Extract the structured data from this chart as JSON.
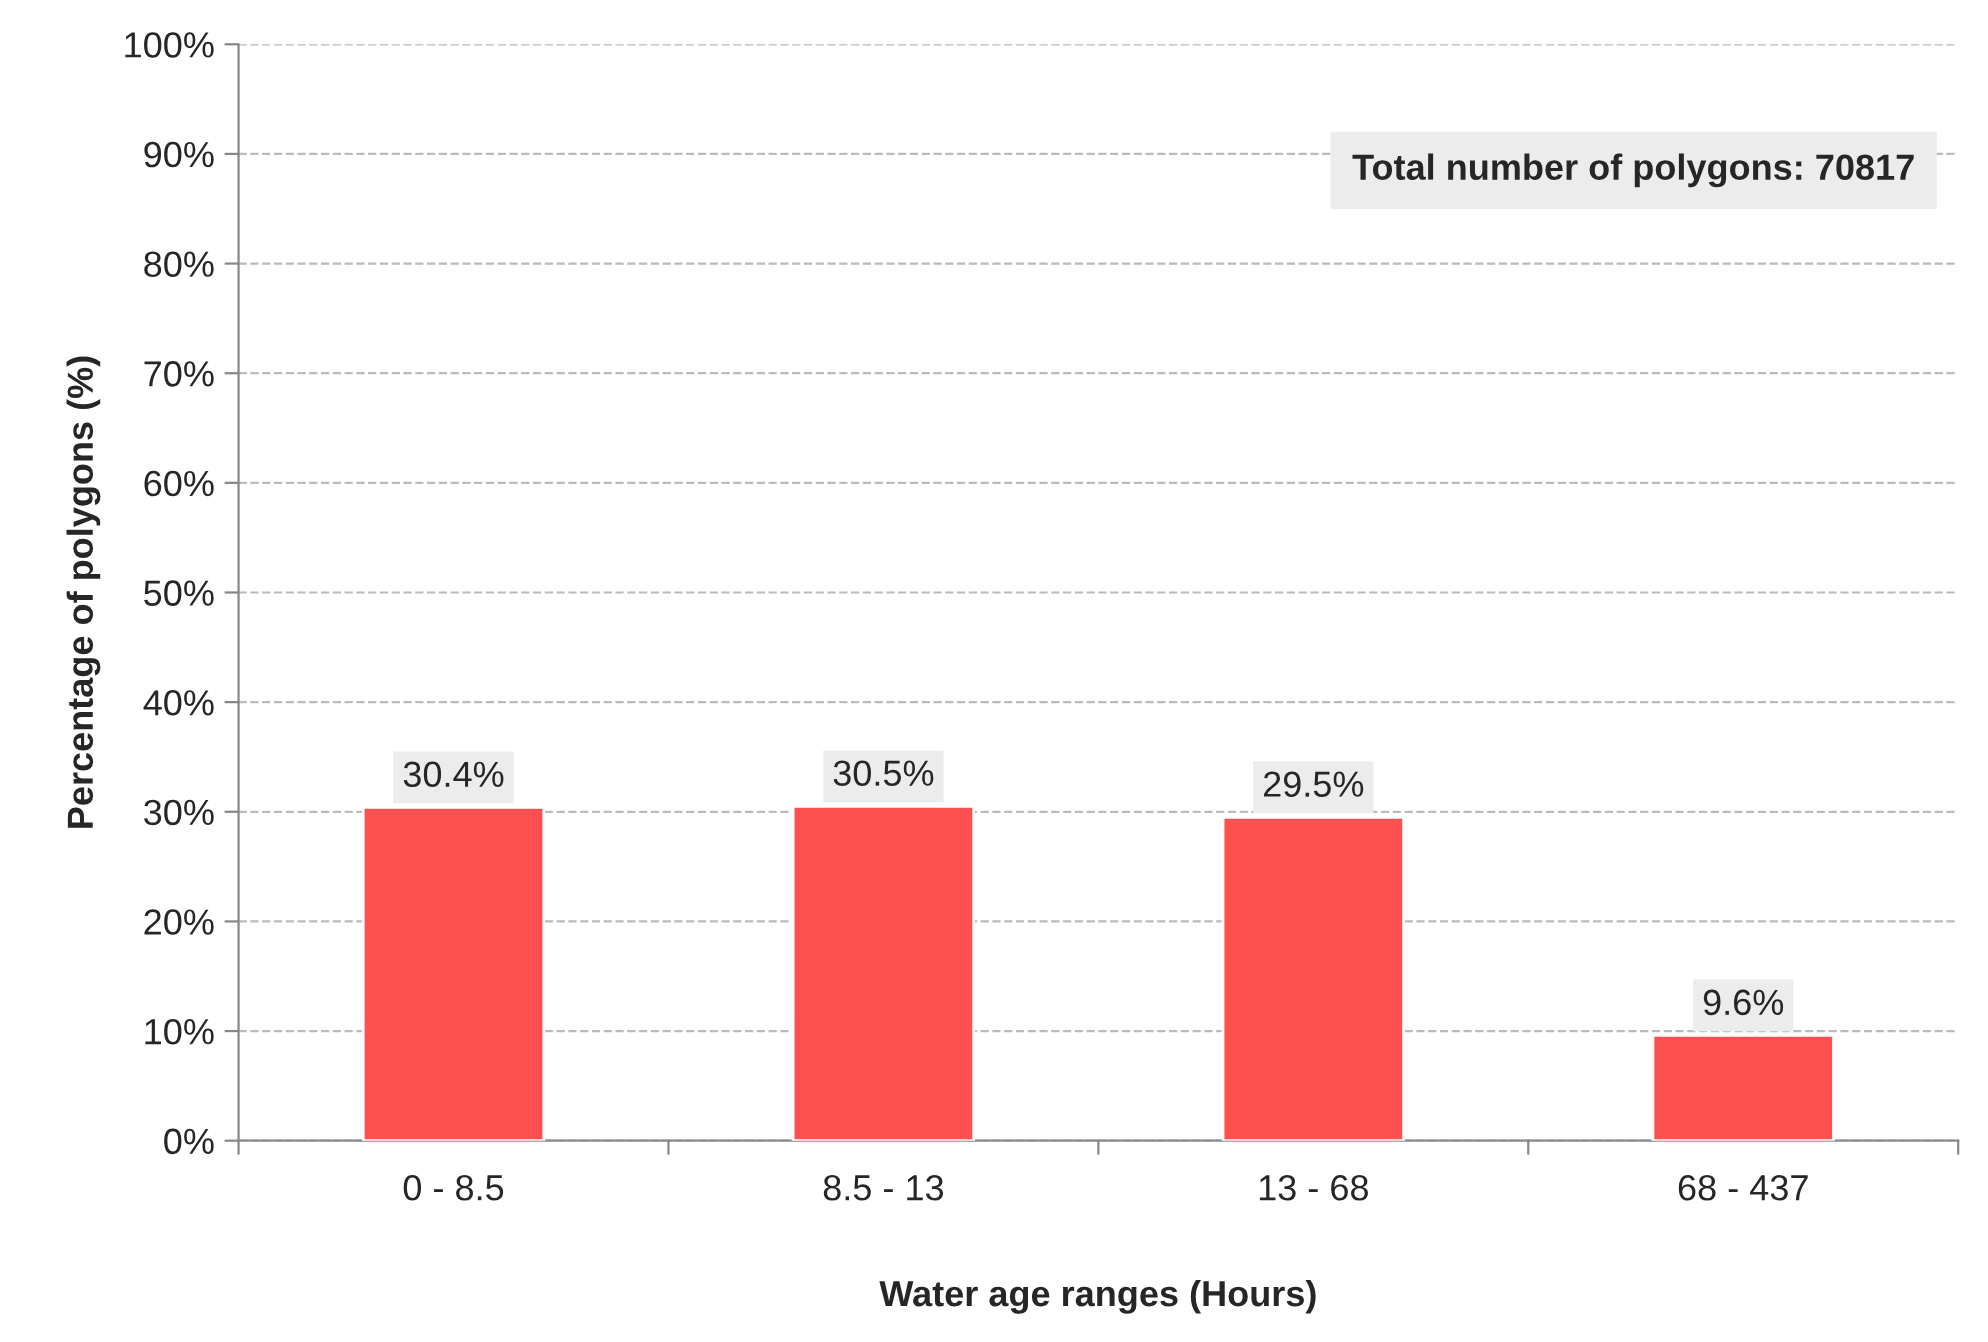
{
  "chart_data": {
    "type": "bar",
    "xlabel": "Water age ranges (Hours)",
    "ylabel": "Percentage of polygons (%)",
    "categories": [
      "0 - 8.5",
      "8.5 - 13",
      "13 - 68",
      "68 - 437"
    ],
    "values": [
      30.4,
      30.5,
      29.5,
      9.6
    ],
    "color": "#ff5050",
    "value_labels": [
      "30.4%",
      "30.5%",
      "29.5%",
      "9.6%"
    ],
    "ylim": [
      0,
      100
    ],
    "yticks": [
      {
        "value": 0,
        "label": "0%"
      },
      {
        "value": 10,
        "label": "10%"
      },
      {
        "value": 20,
        "label": "20%"
      },
      {
        "value": 30,
        "label": "30%"
      },
      {
        "value": 40,
        "label": "40%"
      },
      {
        "value": 50,
        "label": "50%"
      },
      {
        "value": 60,
        "label": "60%"
      },
      {
        "value": 70,
        "label": "70%"
      },
      {
        "value": 80,
        "label": "80%"
      },
      {
        "value": 90,
        "label": "90%"
      },
      {
        "value": 100,
        "label": "100%"
      }
    ],
    "grid": "y",
    "annotations": [
      "Total number of polygons: 70817"
    ]
  }
}
